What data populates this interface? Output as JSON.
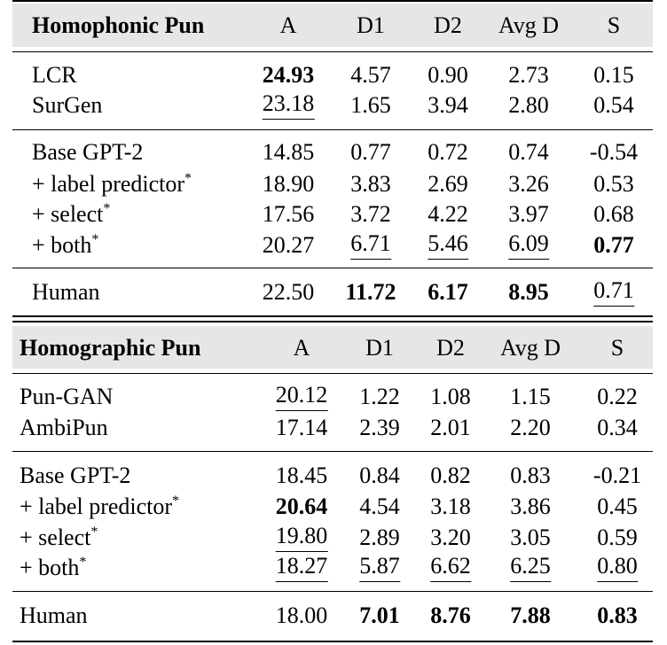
{
  "tables": [
    {
      "header": [
        "Homophonic Pun",
        "A",
        "D1",
        "D2",
        "Avg D",
        "S"
      ],
      "rows": [
        {
          "cells": [
            "LCR",
            "24.93",
            "4.57",
            "0.90",
            "2.73",
            "0.15"
          ],
          "bold": [
            1
          ],
          "underline": []
        },
        {
          "cells": [
            "SurGen",
            "23.18",
            "1.65",
            "3.94",
            "2.80",
            "0.54"
          ],
          "bold": [],
          "underline": [
            1
          ]
        },
        {
          "cells": [
            "Base GPT-2",
            "14.85",
            "0.77",
            "0.72",
            "0.74",
            "-0.54"
          ],
          "bold": [],
          "underline": []
        },
        {
          "cells": [
            "+ label predictor",
            "18.90",
            "3.83",
            "2.69",
            "3.26",
            "0.53"
          ],
          "sup": "*",
          "bold": [],
          "underline": []
        },
        {
          "cells": [
            "+ select",
            "17.56",
            "3.72",
            "4.22",
            "3.97",
            "0.68"
          ],
          "sup": "*",
          "bold": [],
          "underline": []
        },
        {
          "cells": [
            "+ both",
            "20.27",
            "6.71",
            "5.46",
            "6.09",
            "0.77"
          ],
          "sup": "*",
          "bold": [
            5
          ],
          "underline": [
            2,
            3,
            4
          ]
        },
        {
          "cells": [
            "Human",
            "22.50",
            "11.72",
            "6.17",
            "8.95",
            "0.71"
          ],
          "bold": [
            2,
            3,
            4
          ],
          "underline": [
            5
          ]
        }
      ]
    },
    {
      "header": [
        "Homographic Pun",
        "A",
        "D1",
        "D2",
        "Avg D",
        "S"
      ],
      "rows": [
        {
          "cells": [
            "Pun-GAN",
            "20.12",
            "1.22",
            "1.08",
            "1.15",
            "0.22"
          ],
          "bold": [],
          "underline": [
            1
          ]
        },
        {
          "cells": [
            "AmbiPun",
            "17.14",
            "2.39",
            "2.01",
            "2.20",
            "0.34"
          ],
          "bold": [],
          "underline": []
        },
        {
          "cells": [
            "Base GPT-2",
            "18.45",
            "0.84",
            "0.82",
            "0.83",
            "-0.21"
          ],
          "bold": [],
          "underline": []
        },
        {
          "cells": [
            "+ label predictor",
            "20.64",
            "4.54",
            "3.18",
            "3.86",
            "0.45"
          ],
          "sup": "*",
          "bold": [
            1
          ],
          "underline": []
        },
        {
          "cells": [
            "+ select",
            "19.80",
            "2.89",
            "3.20",
            "3.05",
            "0.59"
          ],
          "sup": "*",
          "bold": [],
          "underline": [
            1
          ]
        },
        {
          "cells": [
            "+ both",
            "18.27",
            "5.87",
            "6.62",
            "6.25",
            "0.80"
          ],
          "sup": "*",
          "bold": [],
          "underline": [
            1,
            2,
            3,
            4,
            5
          ]
        },
        {
          "cells": [
            "Human",
            "18.00",
            "7.01",
            "8.76",
            "7.88",
            "0.83"
          ],
          "bold": [
            2,
            3,
            4,
            5
          ],
          "underline": []
        }
      ]
    }
  ]
}
